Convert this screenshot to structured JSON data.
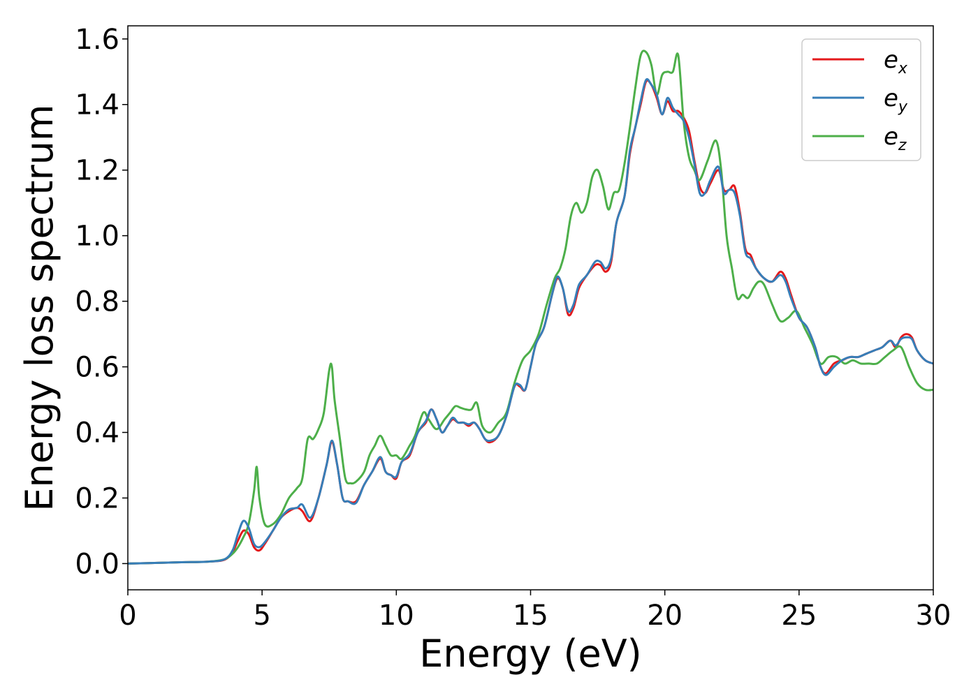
{
  "chart_data": {
    "type": "line",
    "title": "",
    "xlabel": "Energy (eV)",
    "ylabel": "Energy loss spectrum",
    "xlim": [
      0,
      30
    ],
    "ylim": [
      -0.08,
      1.64
    ],
    "xticks": [
      0,
      5,
      10,
      15,
      20,
      25,
      30
    ],
    "xtick_labels": [
      "0",
      "5",
      "10",
      "15",
      "20",
      "25",
      "30"
    ],
    "yticks": [
      0.0,
      0.2,
      0.4,
      0.6,
      0.8,
      1.0,
      1.2,
      1.4,
      1.6
    ],
    "ytick_labels": [
      "0.0",
      "0.2",
      "0.4",
      "0.6",
      "0.8",
      "1.0",
      "1.2",
      "1.4",
      "1.6"
    ],
    "grid": false,
    "legend_position": "top-right",
    "series": [
      {
        "name": "e_x",
        "legend_base": "e",
        "legend_sub": "x",
        "color": "#e41a1c",
        "x": [
          0,
          1,
          2,
          3,
          3.6,
          3.9,
          4.1,
          4.3,
          4.5,
          4.7,
          4.9,
          5.1,
          5.4,
          5.7,
          6.0,
          6.3,
          6.5,
          6.8,
          7.1,
          7.4,
          7.6,
          7.8,
          8.0,
          8.2,
          8.5,
          8.8,
          9.1,
          9.4,
          9.6,
          9.8,
          10.0,
          10.2,
          10.5,
          10.8,
          11.1,
          11.3,
          11.5,
          11.7,
          11.9,
          12.1,
          12.3,
          12.5,
          12.7,
          12.9,
          13.1,
          13.3,
          13.5,
          13.8,
          14.1,
          14.4,
          14.6,
          14.8,
          15.0,
          15.2,
          15.5,
          15.8,
          16.0,
          16.2,
          16.4,
          16.6,
          16.8,
          17.1,
          17.4,
          17.6,
          17.8,
          18.0,
          18.2,
          18.5,
          18.7,
          18.9,
          19.1,
          19.3,
          19.5,
          19.7,
          19.9,
          20.1,
          20.3,
          20.5,
          20.7,
          20.9,
          21.1,
          21.3,
          21.5,
          21.7,
          22.0,
          22.2,
          22.4,
          22.6,
          22.8,
          23.0,
          23.2,
          23.4,
          23.7,
          24.0,
          24.3,
          24.5,
          24.7,
          25.0,
          25.3,
          25.6,
          25.8,
          26.0,
          26.3,
          26.6,
          26.9,
          27.2,
          27.5,
          27.8,
          28.1,
          28.4,
          28.6,
          28.8,
          29.0,
          29.2,
          29.4,
          29.7,
          30.0
        ],
        "y": [
          0.0,
          0.002,
          0.004,
          0.006,
          0.012,
          0.035,
          0.07,
          0.1,
          0.09,
          0.05,
          0.04,
          0.06,
          0.1,
          0.14,
          0.16,
          0.17,
          0.16,
          0.13,
          0.2,
          0.3,
          0.37,
          0.3,
          0.2,
          0.19,
          0.19,
          0.24,
          0.28,
          0.32,
          0.28,
          0.27,
          0.26,
          0.31,
          0.33,
          0.4,
          0.43,
          0.47,
          0.44,
          0.4,
          0.42,
          0.44,
          0.43,
          0.43,
          0.42,
          0.43,
          0.41,
          0.38,
          0.37,
          0.39,
          0.45,
          0.54,
          0.54,
          0.53,
          0.6,
          0.67,
          0.72,
          0.82,
          0.87,
          0.84,
          0.76,
          0.78,
          0.84,
          0.88,
          0.91,
          0.91,
          0.89,
          0.92,
          1.04,
          1.12,
          1.25,
          1.33,
          1.4,
          1.47,
          1.46,
          1.42,
          1.37,
          1.41,
          1.38,
          1.38,
          1.36,
          1.32,
          1.23,
          1.15,
          1.13,
          1.16,
          1.2,
          1.14,
          1.14,
          1.15,
          1.07,
          0.96,
          0.94,
          0.9,
          0.87,
          0.86,
          0.89,
          0.87,
          0.82,
          0.75,
          0.72,
          0.66,
          0.6,
          0.58,
          0.61,
          0.62,
          0.63,
          0.63,
          0.64,
          0.65,
          0.66,
          0.68,
          0.66,
          0.69,
          0.7,
          0.69,
          0.65,
          0.62,
          0.61
        ]
      },
      {
        "name": "e_y",
        "legend_base": "e",
        "legend_sub": "y",
        "color": "#377eb8",
        "x": [
          0,
          1,
          2,
          3,
          3.6,
          3.9,
          4.1,
          4.3,
          4.5,
          4.7,
          4.9,
          5.1,
          5.4,
          5.7,
          6.0,
          6.3,
          6.5,
          6.8,
          7.1,
          7.4,
          7.6,
          7.8,
          8.0,
          8.2,
          8.5,
          8.8,
          9.1,
          9.4,
          9.6,
          9.8,
          10.0,
          10.2,
          10.5,
          10.8,
          11.1,
          11.3,
          11.5,
          11.7,
          11.9,
          12.1,
          12.3,
          12.5,
          12.7,
          12.9,
          13.1,
          13.3,
          13.5,
          13.8,
          14.1,
          14.4,
          14.6,
          14.8,
          15.0,
          15.2,
          15.5,
          15.8,
          16.0,
          16.2,
          16.4,
          16.6,
          16.8,
          17.1,
          17.4,
          17.6,
          17.8,
          18.0,
          18.2,
          18.5,
          18.7,
          18.9,
          19.1,
          19.3,
          19.5,
          19.7,
          19.9,
          20.1,
          20.3,
          20.5,
          20.7,
          20.9,
          21.1,
          21.3,
          21.5,
          21.7,
          22.0,
          22.2,
          22.4,
          22.6,
          22.8,
          23.0,
          23.2,
          23.4,
          23.7,
          24.0,
          24.3,
          24.5,
          24.7,
          25.0,
          25.3,
          25.6,
          25.8,
          26.0,
          26.3,
          26.6,
          26.9,
          27.2,
          27.5,
          27.8,
          28.1,
          28.4,
          28.6,
          28.8,
          29.0,
          29.2,
          29.4,
          29.7,
          30.0
        ],
        "y": [
          0.0,
          0.002,
          0.004,
          0.006,
          0.013,
          0.04,
          0.09,
          0.13,
          0.11,
          0.06,
          0.05,
          0.065,
          0.1,
          0.14,
          0.165,
          0.17,
          0.18,
          0.14,
          0.2,
          0.3,
          0.375,
          0.3,
          0.2,
          0.19,
          0.185,
          0.24,
          0.28,
          0.325,
          0.28,
          0.27,
          0.265,
          0.31,
          0.335,
          0.4,
          0.435,
          0.47,
          0.44,
          0.4,
          0.42,
          0.445,
          0.43,
          0.43,
          0.425,
          0.43,
          0.41,
          0.38,
          0.375,
          0.39,
          0.45,
          0.54,
          0.545,
          0.53,
          0.6,
          0.67,
          0.72,
          0.82,
          0.875,
          0.84,
          0.77,
          0.79,
          0.85,
          0.88,
          0.92,
          0.92,
          0.9,
          0.93,
          1.04,
          1.12,
          1.26,
          1.33,
          1.41,
          1.475,
          1.46,
          1.43,
          1.37,
          1.42,
          1.39,
          1.37,
          1.35,
          1.3,
          1.22,
          1.13,
          1.13,
          1.17,
          1.21,
          1.13,
          1.14,
          1.13,
          1.06,
          0.95,
          0.93,
          0.9,
          0.87,
          0.86,
          0.88,
          0.86,
          0.81,
          0.75,
          0.72,
          0.66,
          0.6,
          0.575,
          0.6,
          0.62,
          0.63,
          0.63,
          0.64,
          0.65,
          0.66,
          0.68,
          0.665,
          0.685,
          0.69,
          0.685,
          0.65,
          0.62,
          0.61
        ]
      },
      {
        "name": "e_z",
        "legend_base": "e",
        "legend_sub": "z",
        "color": "#4daf4a",
        "x": [
          0,
          1,
          2,
          3,
          3.6,
          3.9,
          4.1,
          4.3,
          4.5,
          4.7,
          4.8,
          4.9,
          5.1,
          5.4,
          5.7,
          6.0,
          6.3,
          6.5,
          6.7,
          6.9,
          7.1,
          7.3,
          7.5,
          7.6,
          7.7,
          7.9,
          8.1,
          8.3,
          8.5,
          8.8,
          9.0,
          9.2,
          9.4,
          9.6,
          9.8,
          10.0,
          10.2,
          10.5,
          10.7,
          11.0,
          11.2,
          11.5,
          11.8,
          12.0,
          12.2,
          12.4,
          12.6,
          12.8,
          13.0,
          13.2,
          13.5,
          13.8,
          14.1,
          14.4,
          14.7,
          15.0,
          15.3,
          15.6,
          15.9,
          16.1,
          16.3,
          16.5,
          16.7,
          16.9,
          17.1,
          17.3,
          17.5,
          17.7,
          17.9,
          18.1,
          18.3,
          18.5,
          18.7,
          18.9,
          19.1,
          19.3,
          19.5,
          19.7,
          19.9,
          20.1,
          20.3,
          20.5,
          20.7,
          20.9,
          21.1,
          21.3,
          21.6,
          21.9,
          22.1,
          22.3,
          22.5,
          22.7,
          22.9,
          23.1,
          23.3,
          23.5,
          23.7,
          24.0,
          24.3,
          24.6,
          24.9,
          25.2,
          25.5,
          25.8,
          26.1,
          26.4,
          26.7,
          27.0,
          27.3,
          27.6,
          27.9,
          28.2,
          28.5,
          28.8,
          29.1,
          29.4,
          29.7,
          30.0
        ],
        "y": [
          0.0,
          0.002,
          0.004,
          0.006,
          0.013,
          0.03,
          0.05,
          0.08,
          0.12,
          0.22,
          0.295,
          0.2,
          0.12,
          0.12,
          0.15,
          0.2,
          0.23,
          0.26,
          0.38,
          0.38,
          0.41,
          0.46,
          0.59,
          0.6,
          0.5,
          0.38,
          0.26,
          0.245,
          0.25,
          0.28,
          0.33,
          0.36,
          0.39,
          0.36,
          0.33,
          0.33,
          0.32,
          0.36,
          0.39,
          0.46,
          0.44,
          0.41,
          0.44,
          0.46,
          0.48,
          0.475,
          0.47,
          0.47,
          0.49,
          0.42,
          0.4,
          0.43,
          0.46,
          0.55,
          0.62,
          0.65,
          0.7,
          0.79,
          0.87,
          0.9,
          0.96,
          1.06,
          1.1,
          1.07,
          1.1,
          1.18,
          1.2,
          1.15,
          1.08,
          1.13,
          1.14,
          1.22,
          1.33,
          1.45,
          1.55,
          1.56,
          1.52,
          1.43,
          1.49,
          1.5,
          1.5,
          1.55,
          1.35,
          1.24,
          1.2,
          1.17,
          1.23,
          1.29,
          1.2,
          1.0,
          0.9,
          0.81,
          0.82,
          0.81,
          0.84,
          0.86,
          0.85,
          0.79,
          0.74,
          0.75,
          0.77,
          0.72,
          0.67,
          0.61,
          0.63,
          0.63,
          0.61,
          0.62,
          0.61,
          0.61,
          0.61,
          0.63,
          0.65,
          0.66,
          0.6,
          0.55,
          0.53,
          0.53
        ]
      }
    ]
  }
}
